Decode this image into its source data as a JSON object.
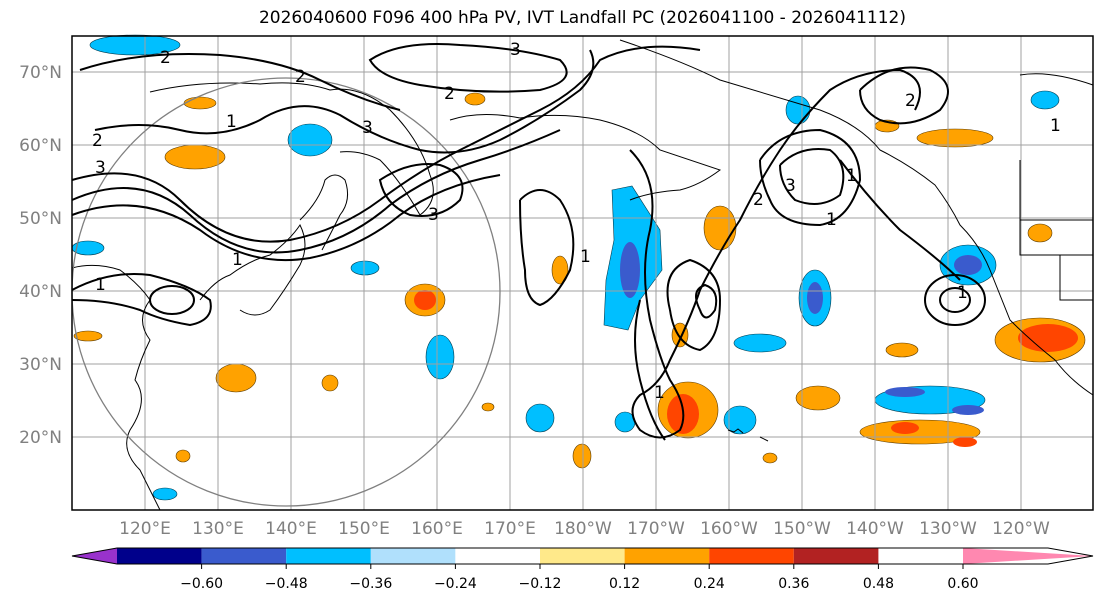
{
  "title": "2026040600 F096 400 hPa PV, IVT Landfall PC (2026041100 - 2026041112)",
  "latitude_labels": [
    "70°N",
    "60°N",
    "50°N",
    "40°N",
    "30°N",
    "20°N"
  ],
  "longitude_labels": [
    "120°E",
    "130°E",
    "140°E",
    "150°E",
    "160°E",
    "170°E",
    "180°W",
    "170°W",
    "160°W",
    "150°W",
    "140°W",
    "130°W",
    "120°W"
  ],
  "contour_labels": [
    "3",
    "2",
    "2",
    "3",
    "2",
    "1",
    "2",
    "3",
    "1",
    "3",
    "1",
    "1",
    "1",
    "2",
    "3",
    "1",
    "1",
    "2",
    "1",
    "1"
  ],
  "colorbar": {
    "tick_labels": [
      "−0.60",
      "−0.48",
      "−0.36",
      "−0.24",
      "−0.12",
      "0.12",
      "0.24",
      "0.36",
      "0.48",
      "0.60"
    ],
    "colors": [
      "#9932cc",
      "#00008b",
      "#3a5bcd",
      "#00bfff",
      "#b0e0fc",
      "#ffffff",
      "#ffe98a",
      "#ffa200",
      "#ff4500",
      "#b22222",
      "#ff88b0"
    ]
  },
  "field_colors": {
    "negative_strong": "#3a5bcd",
    "negative": "#00bfff",
    "negative_weak": "#b0e0fc",
    "positive_weak": "#ffe98a",
    "positive": "#ffa200",
    "positive_strong": "#ff4500",
    "contour": "#000000",
    "grid": "#a0a0a0"
  }
}
